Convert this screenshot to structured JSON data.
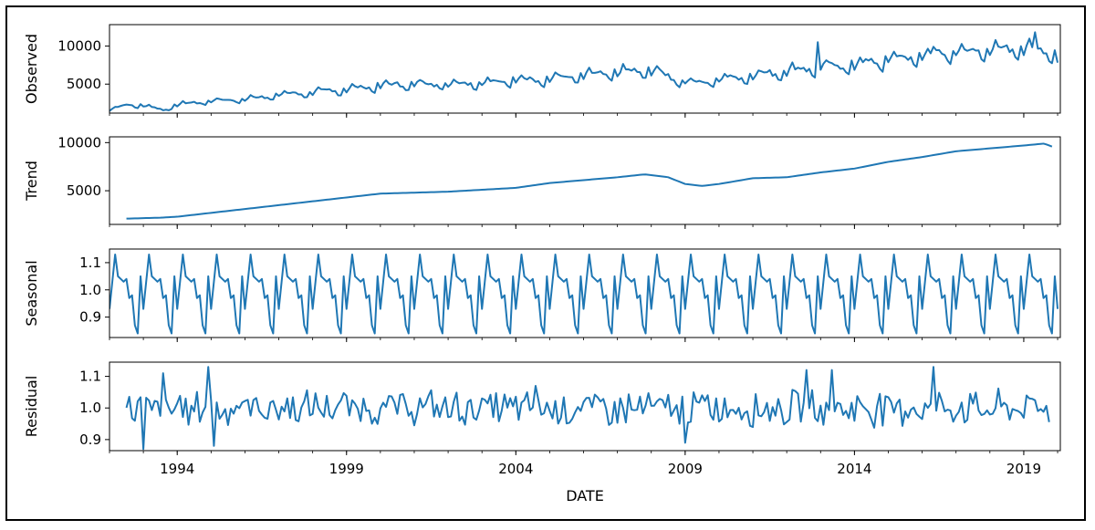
{
  "chart_data": {
    "type": "line",
    "xlabel": "DATE",
    "xticks": [
      "1994",
      "1999",
      "2004",
      "2009",
      "2014",
      "2019"
    ],
    "xlim": [
      1992.0,
      2020.08
    ],
    "x_start": "1992-01",
    "x_step_years": 0.08333,
    "line_color": "#1f77b4",
    "panels": [
      {
        "name": "observed",
        "ylabel": "Observed",
        "ylim": [
          1200,
          12800
        ],
        "yticks": [
          5000,
          10000
        ],
        "start_index": 0,
        "anchors": [
          [
            1992.0,
            1600
          ],
          [
            1992.5,
            2300
          ],
          [
            1993.0,
            2200
          ],
          [
            1993.6,
            1600
          ],
          [
            1994.0,
            2300
          ],
          [
            1995.0,
            2800
          ],
          [
            1996.0,
            3000
          ],
          [
            1997.0,
            3600
          ],
          [
            1998.0,
            3900
          ],
          [
            1999.0,
            4300
          ],
          [
            2000.0,
            4800
          ],
          [
            2001.0,
            5000
          ],
          [
            2002.0,
            5000
          ],
          [
            2003.0,
            5200
          ],
          [
            2004.0,
            5500
          ],
          [
            2005.0,
            5700
          ],
          [
            2006.0,
            6100
          ],
          [
            2007.0,
            6500
          ],
          [
            2008.0,
            6800
          ],
          [
            2008.5,
            6000
          ],
          [
            2009.0,
            5300
          ],
          [
            2009.5,
            5200
          ],
          [
            2010.0,
            5600
          ],
          [
            2011.0,
            6100
          ],
          [
            2012.0,
            6700
          ],
          [
            2013.0,
            7200
          ],
          [
            2014.0,
            7500
          ],
          [
            2015.0,
            8200
          ],
          [
            2016.0,
            8700
          ],
          [
            2017.0,
            9200
          ],
          [
            2018.0,
            9500
          ],
          [
            2019.0,
            9800
          ],
          [
            2019.5,
            9600
          ],
          [
            2020.0,
            8600
          ],
          [
            2020.08,
            6200
          ]
        ],
        "seasonal_amplitude": 1.0,
        "noise": 0.035,
        "spike_points": [
          [
            2019.3,
            11800
          ],
          [
            2016.3,
            9900
          ],
          [
            2012.9,
            10500
          ]
        ]
      },
      {
        "name": "trend",
        "ylabel": "Trend",
        "ylim": [
          1500,
          10600
        ],
        "yticks": [
          5000,
          10000
        ],
        "start_index": 6,
        "anchors": [
          [
            1992.5,
            2100
          ],
          [
            1993.5,
            2200
          ],
          [
            1994.0,
            2300
          ],
          [
            1995.0,
            2700
          ],
          [
            1996.0,
            3100
          ],
          [
            1997.0,
            3500
          ],
          [
            1998.0,
            3900
          ],
          [
            1999.0,
            4300
          ],
          [
            2000.0,
            4700
          ],
          [
            2001.0,
            4800
          ],
          [
            2002.0,
            4900
          ],
          [
            2003.0,
            5100
          ],
          [
            2004.0,
            5300
          ],
          [
            2005.0,
            5800
          ],
          [
            2006.0,
            6100
          ],
          [
            2007.0,
            6400
          ],
          [
            2007.8,
            6700
          ],
          [
            2008.5,
            6400
          ],
          [
            2009.0,
            5700
          ],
          [
            2009.5,
            5500
          ],
          [
            2010.0,
            5700
          ],
          [
            2011.0,
            6300
          ],
          [
            2012.0,
            6400
          ],
          [
            2013.0,
            6900
          ],
          [
            2014.0,
            7300
          ],
          [
            2015.0,
            8000
          ],
          [
            2016.0,
            8500
          ],
          [
            2017.0,
            9100
          ],
          [
            2018.0,
            9400
          ],
          [
            2019.0,
            9700
          ],
          [
            2019.6,
            9900
          ],
          [
            2019.9,
            9500
          ]
        ],
        "seasonal_amplitude": 0,
        "noise": 0
      },
      {
        "name": "seasonal",
        "ylabel": "Seasonal",
        "ylim": [
          0.825,
          1.15
        ],
        "yticks": [
          0.9,
          1.0,
          1.1
        ],
        "ytick_labels": [
          "0.9",
          "1.0",
          "1.1"
        ],
        "start_index": 0,
        "pattern": [
          0.93,
          1.03,
          1.13,
          1.05,
          1.04,
          1.03,
          1.04,
          0.97,
          0.98,
          0.87,
          0.84,
          1.05
        ]
      },
      {
        "name": "residual",
        "ylabel": "Residual",
        "ylim": [
          0.865,
          1.145
        ],
        "yticks": [
          0.9,
          1.0,
          1.1
        ],
        "ytick_labels": [
          "0.9",
          "1.0",
          "1.1"
        ],
        "start_index": 6,
        "end_year": 2019.75,
        "highlights": [
          [
            1994.9,
            1.13
          ],
          [
            1995.1,
            0.88
          ],
          [
            1993.0,
            0.87
          ],
          [
            1993.6,
            1.11
          ],
          [
            2012.6,
            1.12
          ],
          [
            2013.3,
            1.12
          ],
          [
            2016.3,
            1.13
          ],
          [
            2009.0,
            0.89
          ],
          [
            2008.8,
            0.95
          ],
          [
            2004.6,
            1.07
          ]
        ]
      }
    ]
  }
}
